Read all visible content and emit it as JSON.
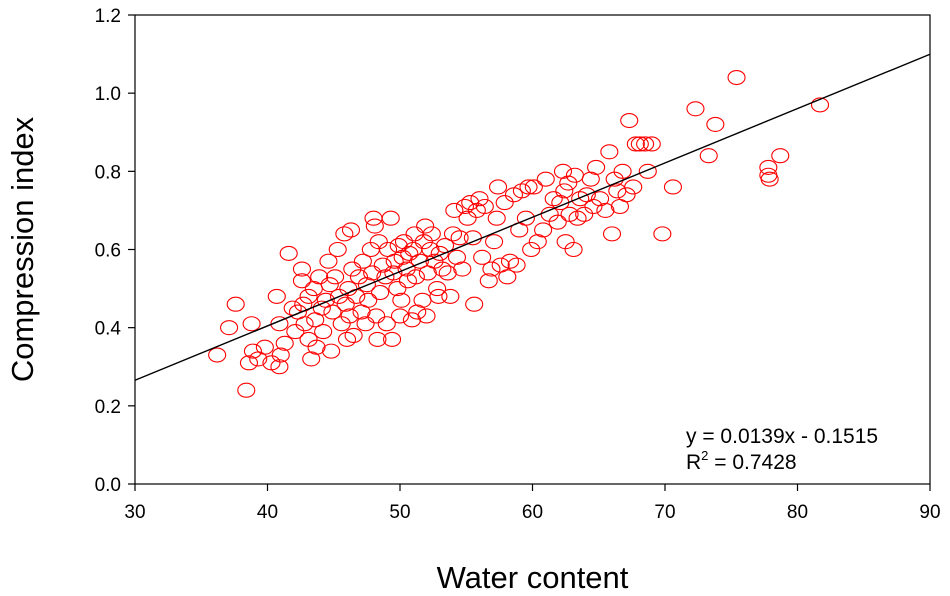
{
  "chart_data": {
    "type": "scatter",
    "xlabel": "Water content",
    "ylabel": "Compression index",
    "xlim": [
      30,
      90
    ],
    "ylim": [
      0,
      1.2
    ],
    "xticks": [
      "30",
      "40",
      "50",
      "60",
      "70",
      "80",
      "90"
    ],
    "yticks": [
      "0.0",
      "0.2",
      "0.4",
      "0.6",
      "0.8",
      "1.0",
      "1.2"
    ],
    "grid": false,
    "legend": "none",
    "marker_color": "#ff0000",
    "line_color": "#000000",
    "trendline": {
      "slope": 0.0139,
      "intercept": -0.1515,
      "x_range": [
        30,
        90
      ]
    },
    "annotations": {
      "equation": "y = 0.0139x - 0.1515",
      "r2_base": "R",
      "r2_sup": "2",
      "r2_rest": " = 0.7428"
    },
    "points": [
      [
        36.2,
        0.33
      ],
      [
        37.1,
        0.4
      ],
      [
        37.6,
        0.46
      ],
      [
        38.4,
        0.24
      ],
      [
        38.6,
        0.31
      ],
      [
        38.8,
        0.41
      ],
      [
        38.9,
        0.34
      ],
      [
        39.3,
        0.32
      ],
      [
        39.8,
        0.35
      ],
      [
        40.3,
        0.31
      ],
      [
        40.7,
        0.48
      ],
      [
        40.9,
        0.41
      ],
      [
        40.9,
        0.3
      ],
      [
        41.0,
        0.33
      ],
      [
        41.3,
        0.36
      ],
      [
        41.6,
        0.59
      ],
      [
        41.9,
        0.45
      ],
      [
        42.1,
        0.39
      ],
      [
        42.3,
        0.44
      ],
      [
        42.6,
        0.52
      ],
      [
        42.6,
        0.55
      ],
      [
        42.7,
        0.46
      ],
      [
        42.8,
        0.41
      ],
      [
        43.1,
        0.37
      ],
      [
        43.1,
        0.48
      ],
      [
        43.3,
        0.32
      ],
      [
        43.5,
        0.5
      ],
      [
        43.6,
        0.42
      ],
      [
        43.7,
        0.35
      ],
      [
        43.9,
        0.53
      ],
      [
        44.1,
        0.45
      ],
      [
        44.2,
        0.39
      ],
      [
        44.4,
        0.47
      ],
      [
        44.6,
        0.57
      ],
      [
        44.7,
        0.51
      ],
      [
        44.8,
        0.34
      ],
      [
        44.9,
        0.44
      ],
      [
        45.1,
        0.53
      ],
      [
        45.3,
        0.6
      ],
      [
        45.4,
        0.48
      ],
      [
        45.6,
        0.41
      ],
      [
        45.8,
        0.64
      ],
      [
        45.9,
        0.46
      ],
      [
        46.0,
        0.37
      ],
      [
        46.1,
        0.5
      ],
      [
        46.2,
        0.43
      ],
      [
        46.3,
        0.65
      ],
      [
        46.4,
        0.55
      ],
      [
        46.5,
        0.38
      ],
      [
        46.7,
        0.48
      ],
      [
        46.9,
        0.53
      ],
      [
        47.1,
        0.44
      ],
      [
        47.2,
        0.57
      ],
      [
        47.4,
        0.41
      ],
      [
        47.5,
        0.51
      ],
      [
        47.6,
        0.47
      ],
      [
        47.8,
        0.6
      ],
      [
        47.9,
        0.54
      ],
      [
        48.0,
        0.68
      ],
      [
        48.1,
        0.66
      ],
      [
        48.2,
        0.43
      ],
      [
        48.3,
        0.37
      ],
      [
        48.4,
        0.62
      ],
      [
        48.5,
        0.49
      ],
      [
        48.7,
        0.56
      ],
      [
        48.9,
        0.53
      ],
      [
        49.0,
        0.41
      ],
      [
        49.1,
        0.6
      ],
      [
        49.3,
        0.68
      ],
      [
        49.4,
        0.37
      ],
      [
        49.5,
        0.54
      ],
      [
        49.6,
        0.57
      ],
      [
        49.8,
        0.5
      ],
      [
        49.9,
        0.61
      ],
      [
        50.0,
        0.43
      ],
      [
        50.1,
        0.47
      ],
      [
        50.2,
        0.58
      ],
      [
        50.3,
        0.62
      ],
      [
        50.5,
        0.55
      ],
      [
        50.6,
        0.52
      ],
      [
        50.7,
        0.59
      ],
      [
        50.9,
        0.42
      ],
      [
        51.0,
        0.6
      ],
      [
        51.1,
        0.64
      ],
      [
        51.2,
        0.53
      ],
      [
        51.3,
        0.44
      ],
      [
        51.5,
        0.57
      ],
      [
        51.7,
        0.47
      ],
      [
        51.8,
        0.62
      ],
      [
        51.9,
        0.66
      ],
      [
        52.0,
        0.43
      ],
      [
        52.1,
        0.54
      ],
      [
        52.3,
        0.6
      ],
      [
        52.4,
        0.64
      ],
      [
        52.6,
        0.57
      ],
      [
        52.8,
        0.5
      ],
      [
        52.9,
        0.48
      ],
      [
        53.0,
        0.59
      ],
      [
        53.2,
        0.55
      ],
      [
        53.4,
        0.61
      ],
      [
        53.6,
        0.54
      ],
      [
        53.8,
        0.48
      ],
      [
        54.0,
        0.64
      ],
      [
        54.1,
        0.7
      ],
      [
        54.3,
        0.58
      ],
      [
        54.5,
        0.63
      ],
      [
        54.7,
        0.55
      ],
      [
        54.9,
        0.71
      ],
      [
        55.1,
        0.68
      ],
      [
        55.3,
        0.72
      ],
      [
        55.5,
        0.63
      ],
      [
        55.6,
        0.46
      ],
      [
        55.8,
        0.7
      ],
      [
        56.0,
        0.73
      ],
      [
        56.2,
        0.58
      ],
      [
        56.4,
        0.71
      ],
      [
        56.7,
        0.52
      ],
      [
        56.9,
        0.55
      ],
      [
        57.1,
        0.62
      ],
      [
        57.3,
        0.68
      ],
      [
        57.4,
        0.76
      ],
      [
        57.6,
        0.56
      ],
      [
        57.9,
        0.72
      ],
      [
        58.1,
        0.53
      ],
      [
        58.3,
        0.57
      ],
      [
        58.6,
        0.74
      ],
      [
        58.8,
        0.56
      ],
      [
        59.0,
        0.65
      ],
      [
        59.2,
        0.75
      ],
      [
        59.5,
        0.68
      ],
      [
        59.7,
        0.76
      ],
      [
        59.9,
        0.6
      ],
      [
        60.1,
        0.76
      ],
      [
        60.4,
        0.62
      ],
      [
        60.8,
        0.65
      ],
      [
        61.0,
        0.78
      ],
      [
        61.3,
        0.69
      ],
      [
        61.6,
        0.73
      ],
      [
        61.9,
        0.67
      ],
      [
        62.1,
        0.72
      ],
      [
        62.3,
        0.8
      ],
      [
        62.4,
        0.75
      ],
      [
        62.5,
        0.62
      ],
      [
        62.7,
        0.77
      ],
      [
        62.8,
        0.69
      ],
      [
        63.1,
        0.6
      ],
      [
        63.2,
        0.79
      ],
      [
        63.4,
        0.68
      ],
      [
        63.6,
        0.73
      ],
      [
        63.9,
        0.69
      ],
      [
        64.1,
        0.74
      ],
      [
        64.4,
        0.78
      ],
      [
        64.6,
        0.71
      ],
      [
        64.8,
        0.81
      ],
      [
        65.1,
        0.73
      ],
      [
        65.5,
        0.7
      ],
      [
        65.8,
        0.85
      ],
      [
        66.0,
        0.64
      ],
      [
        66.2,
        0.78
      ],
      [
        66.4,
        0.75
      ],
      [
        66.6,
        0.71
      ],
      [
        66.8,
        0.8
      ],
      [
        67.1,
        0.74
      ],
      [
        67.3,
        0.93
      ],
      [
        67.6,
        0.76
      ],
      [
        67.8,
        0.87
      ],
      [
        68.1,
        0.87
      ],
      [
        68.5,
        0.87
      ],
      [
        68.7,
        0.8
      ],
      [
        69.0,
        0.87
      ],
      [
        69.8,
        0.64
      ],
      [
        70.6,
        0.76
      ],
      [
        72.3,
        0.96
      ],
      [
        73.3,
        0.84
      ],
      [
        73.8,
        0.92
      ],
      [
        75.4,
        1.04
      ],
      [
        77.8,
        0.81
      ],
      [
        77.8,
        0.79
      ],
      [
        77.9,
        0.78
      ],
      [
        78.7,
        0.84
      ],
      [
        81.7,
        0.97
      ]
    ]
  }
}
